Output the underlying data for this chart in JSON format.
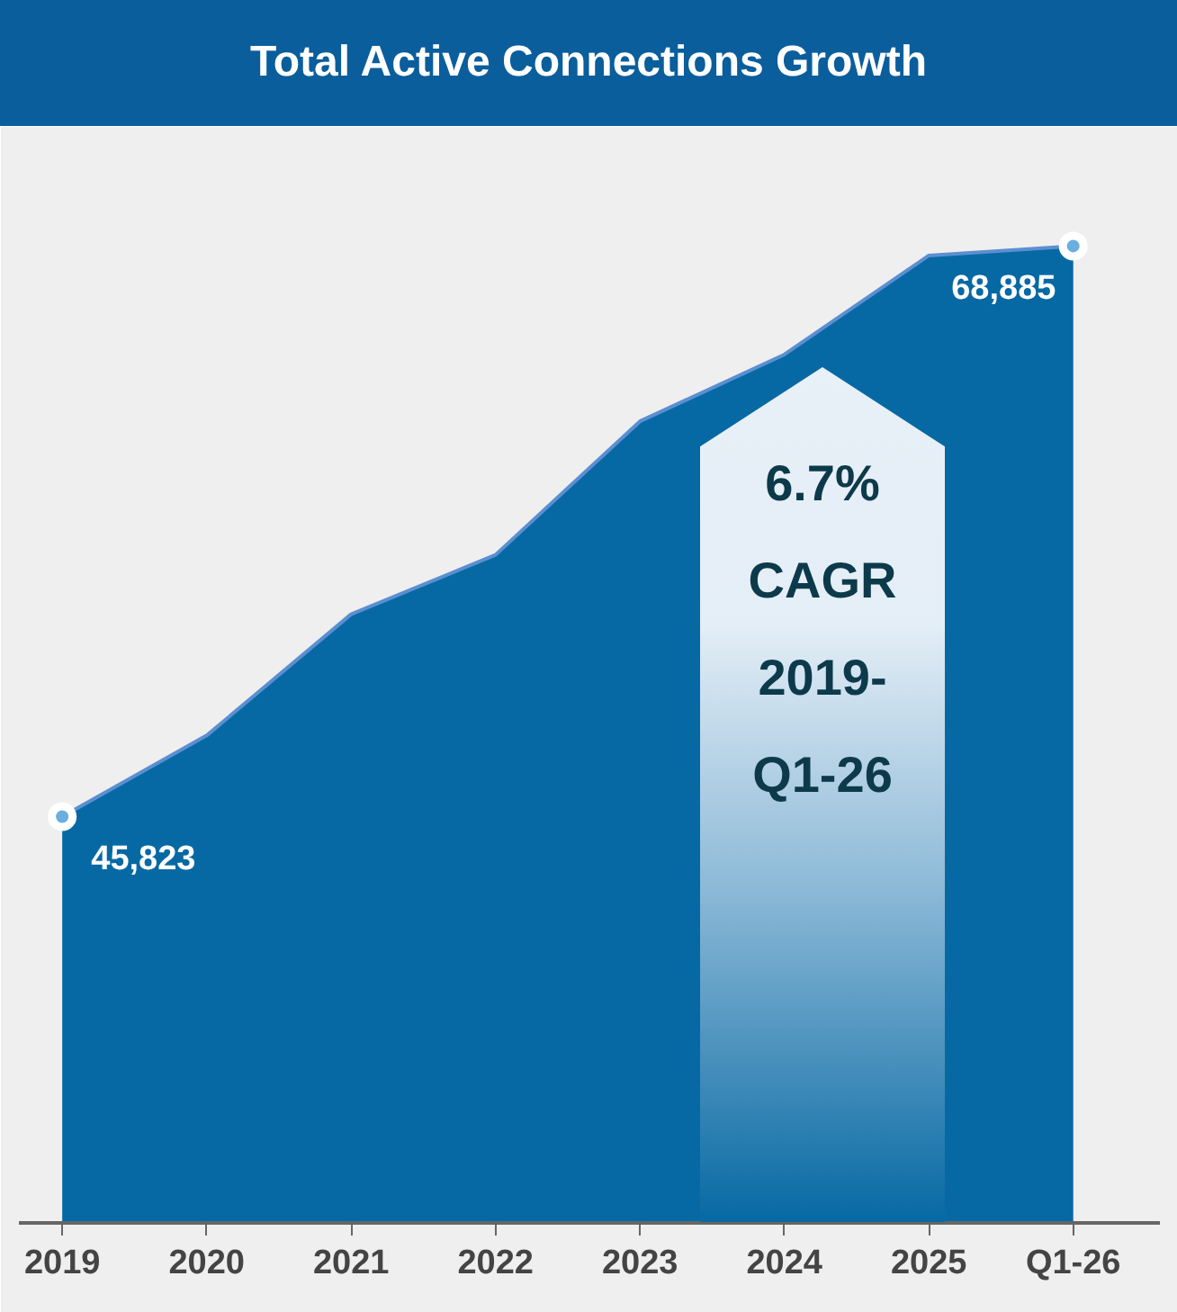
{
  "chart_data": {
    "type": "area",
    "title": "Total Active Connections Growth",
    "categories": [
      "2019",
      "2020",
      "2021",
      "2022",
      "2023",
      "2024",
      "2025",
      "Q1-26"
    ],
    "values": [
      45823,
      49100,
      54000,
      56400,
      61800,
      64500,
      68500,
      68885
    ],
    "value_labels": [
      "45,823",
      null,
      null,
      null,
      null,
      null,
      null,
      "68,885"
    ],
    "color": "#0769a3",
    "ylim": [
      29400,
      73700
    ],
    "tick_labels": "x",
    "grid": false,
    "annotations": [
      "6.7%\nCAGR\n2019-\nQ1-26"
    ]
  }
}
